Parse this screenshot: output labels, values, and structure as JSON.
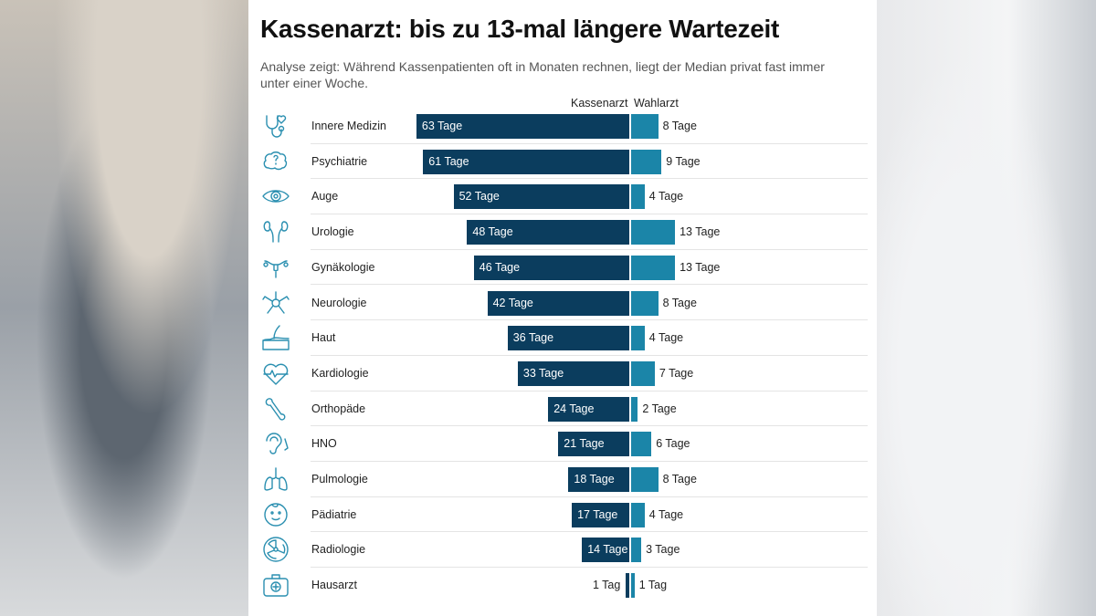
{
  "header": {
    "title": "Kassenarzt: bis zu 13-mal längere Wartezeit",
    "subtitle": "Analyse zeigt: Während Kassenpatienten oft in Monaten rechnen, liegt der Median privat fast immer unter einer Woche."
  },
  "colors": {
    "kassenarzt": "#0b3d5e",
    "wahlarzt": "#1b85a8",
    "icon": "#2a8fb0"
  },
  "chart_data": {
    "type": "bar",
    "orientation": "horizontal-diverging",
    "title": "Kassenarzt: bis zu 13-mal längere Wartezeit",
    "unit": "Tage",
    "categories": [
      "Innere Medizin",
      "Psychiatrie",
      "Auge",
      "Urologie",
      "Gynäkologie",
      "Neurologie",
      "Haut",
      "Kardiologie",
      "Orthopäde",
      "HNO",
      "Pulmologie",
      "Pädiatrie",
      "Radiologie",
      "Hausarzt"
    ],
    "icons": [
      "stethoscope-heart-icon",
      "brain-icon",
      "eye-icon",
      "kidney-icon",
      "uterus-icon",
      "neuron-icon",
      "skin-icon",
      "heartbeat-icon",
      "bone-icon",
      "ear-nose-icon",
      "lungs-icon",
      "baby-icon",
      "radiation-icon",
      "first-aid-kit-icon"
    ],
    "series": [
      {
        "name": "Kassenarzt",
        "values": [
          63,
          61,
          52,
          48,
          46,
          42,
          36,
          33,
          24,
          21,
          18,
          17,
          14,
          1
        ],
        "labels": [
          "63 Tage",
          "61 Tage",
          "52 Tage",
          "48 Tage",
          "46 Tage",
          "42 Tage",
          "36 Tage",
          "33 Tage",
          "24 Tage",
          "21 Tage",
          "18 Tage",
          "17 Tage",
          "14 Tage",
          "1 Tag"
        ]
      },
      {
        "name": "Wahlarzt",
        "values": [
          8,
          9,
          4,
          13,
          13,
          8,
          4,
          7,
          2,
          6,
          8,
          4,
          3,
          1
        ],
        "labels": [
          "8 Tage",
          "9 Tage",
          "4 Tage",
          "13 Tage",
          "13 Tage",
          "8 Tage",
          "4 Tage",
          "7 Tage",
          "2 Tage",
          "6 Tage",
          "8 Tage",
          "4 Tage",
          "3 Tage",
          "1 Tag"
        ]
      }
    ],
    "legend": "top",
    "grid": false
  }
}
